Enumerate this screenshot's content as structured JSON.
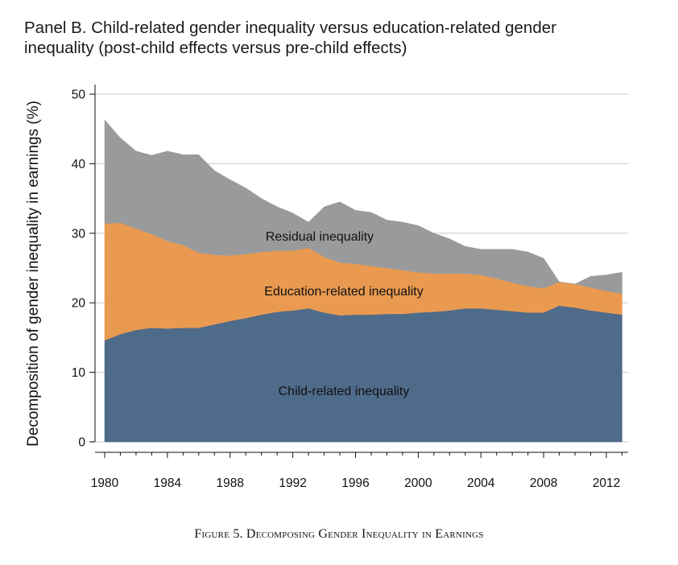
{
  "title_line1": "Panel B. Child-related gender inequality versus education-related gender",
  "title_line2": "inequality (post-child effects versus pre-child effects)",
  "caption": "Figure 5. Decomposing Gender Inequality in Earnings",
  "chart_data": {
    "type": "area",
    "stacked": true,
    "ylabel": "Decomposition of gender inequality in earnings (%)",
    "xlabel": "",
    "ylim": [
      0,
      50
    ],
    "xlim": [
      1980,
      2013
    ],
    "yticks": [
      0,
      10,
      20,
      30,
      40,
      50
    ],
    "xticks": [
      1980,
      1984,
      1988,
      1992,
      1996,
      2000,
      2004,
      2008,
      2012
    ],
    "grid": "horizontal",
    "x": [
      1980,
      1981,
      1982,
      1983,
      1984,
      1985,
      1986,
      1987,
      1988,
      1989,
      1990,
      1991,
      1992,
      1993,
      1994,
      1995,
      1996,
      1997,
      1998,
      1999,
      2000,
      2001,
      2002,
      2003,
      2004,
      2005,
      2006,
      2007,
      2008,
      2009,
      2010,
      2011,
      2012,
      2013
    ],
    "series": [
      {
        "name": "Child-related inequality",
        "color": "#4f6b8a",
        "values": [
          14.6,
          15.5,
          16.1,
          16.4,
          16.3,
          16.4,
          16.4,
          16.9,
          17.4,
          17.8,
          18.3,
          18.7,
          18.9,
          19.2,
          18.6,
          18.2,
          18.3,
          18.3,
          18.4,
          18.4,
          18.6,
          18.7,
          18.9,
          19.2,
          19.2,
          19.0,
          18.8,
          18.6,
          18.6,
          19.6,
          19.3,
          18.9,
          18.6,
          18.3
        ]
      },
      {
        "name": "Education-related inequality",
        "color": "#e99a50",
        "values": [
          16.8,
          16.0,
          14.6,
          13.5,
          12.6,
          11.9,
          10.8,
          10.0,
          9.4,
          9.2,
          9.0,
          8.8,
          8.6,
          8.7,
          8.0,
          7.6,
          7.3,
          7.0,
          6.6,
          6.3,
          5.8,
          5.5,
          5.3,
          5.0,
          4.8,
          4.5,
          4.1,
          3.8,
          3.5,
          3.4,
          3.4,
          3.3,
          3.1,
          3.0
        ]
      },
      {
        "name": "Residual inequality",
        "color": "#999a9c",
        "values": [
          14.9,
          12.2,
          11.1,
          11.3,
          12.9,
          13.0,
          14.1,
          12.1,
          10.9,
          9.5,
          7.7,
          6.3,
          5.4,
          3.7,
          7.2,
          8.7,
          7.7,
          7.7,
          6.9,
          6.9,
          6.7,
          5.8,
          5.0,
          3.9,
          3.7,
          4.2,
          4.8,
          4.9,
          4.3,
          0.0,
          0.0,
          1.6,
          2.3,
          3.1
        ]
      }
    ]
  }
}
